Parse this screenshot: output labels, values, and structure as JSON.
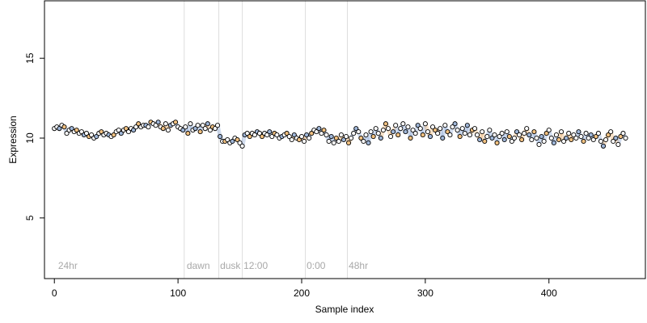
{
  "chart_data": {
    "type": "scatter",
    "xlabel": "Sample index",
    "ylabel": "Expression",
    "xlim": [
      -8,
      478
    ],
    "ylim": [
      1.2,
      18.6
    ],
    "x_ticks": [
      0,
      100,
      200,
      300,
      400
    ],
    "y_ticks": [
      5,
      10,
      15
    ],
    "x_tick_labels": [
      "0",
      "100",
      "200",
      "300",
      "400"
    ],
    "y_tick_labels": [
      "5",
      "10",
      "15"
    ],
    "vertical_lines": [
      105,
      133,
      152,
      203,
      237
    ],
    "annotations": [
      {
        "text": "24hr",
        "x": 3
      },
      {
        "text": "dawn",
        "x": 107
      },
      {
        "text": "dusk",
        "x": 134
      },
      {
        "text": "12:00",
        "x": 153
      },
      {
        "text": "0:00",
        "x": 204
      },
      {
        "text": "48hr",
        "x": 238
      }
    ],
    "annotation_y": 2.0,
    "colors": {
      "point_outline": "#000000",
      "fill_blue": "#9fb6d8",
      "fill_orange": "#f0c080",
      "fill_white": "#ffffff",
      "shade_blue": "#7f9fd0",
      "shade_orange": "#e8a860",
      "vline": "#dddddd",
      "annot": "#a8a8a8"
    },
    "points": [
      [
        0,
        10.6
      ],
      [
        2,
        10.7
      ],
      [
        4,
        10.6
      ],
      [
        6,
        10.8
      ],
      [
        8,
        10.7
      ],
      [
        10,
        10.3
      ],
      [
        12,
        10.5
      ],
      [
        14,
        10.6
      ],
      [
        16,
        10.4
      ],
      [
        18,
        10.5
      ],
      [
        20,
        10.3
      ],
      [
        22,
        10.4
      ],
      [
        24,
        10.2
      ],
      [
        26,
        10.3
      ],
      [
        28,
        10.1
      ],
      [
        30,
        10.2
      ],
      [
        32,
        10.0
      ],
      [
        34,
        10.1
      ],
      [
        36,
        10.3
      ],
      [
        38,
        10.4
      ],
      [
        40,
        10.2
      ],
      [
        42,
        10.3
      ],
      [
        44,
        10.2
      ],
      [
        46,
        10.1
      ],
      [
        48,
        10.2
      ],
      [
        50,
        10.4
      ],
      [
        52,
        10.5
      ],
      [
        54,
        10.3
      ],
      [
        56,
        10.5
      ],
      [
        58,
        10.6
      ],
      [
        60,
        10.4
      ],
      [
        62,
        10.6
      ],
      [
        64,
        10.5
      ],
      [
        66,
        10.7
      ],
      [
        68,
        10.9
      ],
      [
        70,
        10.7
      ],
      [
        72,
        10.8
      ],
      [
        74,
        10.8
      ],
      [
        76,
        10.7
      ],
      [
        78,
        11.0
      ],
      [
        80,
        10.9
      ],
      [
        82,
        10.8
      ],
      [
        84,
        11.0
      ],
      [
        86,
        10.7
      ],
      [
        88,
        10.6
      ],
      [
        90,
        10.9
      ],
      [
        92,
        10.5
      ],
      [
        94,
        10.8
      ],
      [
        96,
        10.9
      ],
      [
        98,
        11.0
      ],
      [
        100,
        10.7
      ],
      [
        102,
        10.6
      ],
      [
        104,
        10.5
      ],
      [
        106,
        10.7
      ],
      [
        108,
        10.3
      ],
      [
        110,
        10.9
      ],
      [
        112,
        10.5
      ],
      [
        114,
        10.6
      ],
      [
        116,
        10.8
      ],
      [
        118,
        10.4
      ],
      [
        120,
        10.8
      ],
      [
        122,
        10.6
      ],
      [
        124,
        10.9
      ],
      [
        126,
        10.5
      ],
      [
        128,
        10.7
      ],
      [
        130,
        10.6
      ],
      [
        132,
        10.8
      ],
      [
        134,
        10.1
      ],
      [
        136,
        9.8
      ],
      [
        138,
        9.8
      ],
      [
        140,
        9.9
      ],
      [
        142,
        9.7
      ],
      [
        144,
        9.8
      ],
      [
        146,
        10.0
      ],
      [
        148,
        9.9
      ],
      [
        150,
        9.7
      ],
      [
        152,
        9.5
      ],
      [
        154,
        10.2
      ],
      [
        156,
        10.3
      ],
      [
        158,
        10.1
      ],
      [
        160,
        10.3
      ],
      [
        162,
        10.2
      ],
      [
        164,
        10.4
      ],
      [
        166,
        10.3
      ],
      [
        168,
        10.1
      ],
      [
        170,
        10.3
      ],
      [
        172,
        10.2
      ],
      [
        174,
        10.4
      ],
      [
        176,
        10.1
      ],
      [
        178,
        10.3
      ],
      [
        180,
        10.2
      ],
      [
        182,
        10.0
      ],
      [
        184,
        10.1
      ],
      [
        186,
        10.2
      ],
      [
        188,
        10.3
      ],
      [
        190,
        10.1
      ],
      [
        192,
        9.9
      ],
      [
        194,
        10.2
      ],
      [
        196,
        10.0
      ],
      [
        198,
        9.9
      ],
      [
        200,
        10.1
      ],
      [
        202,
        9.8
      ],
      [
        204,
        10.2
      ],
      [
        206,
        10.0
      ],
      [
        208,
        10.3
      ],
      [
        210,
        10.5
      ],
      [
        212,
        10.4
      ],
      [
        214,
        10.6
      ],
      [
        216,
        10.3
      ],
      [
        218,
        10.5
      ],
      [
        220,
        10.2
      ],
      [
        222,
        9.8
      ],
      [
        224,
        10.1
      ],
      [
        226,
        9.7
      ],
      [
        228,
        10.0
      ],
      [
        230,
        9.8
      ],
      [
        232,
        10.2
      ],
      [
        234,
        9.9
      ],
      [
        236,
        10.1
      ],
      [
        238,
        9.7
      ],
      [
        240,
        10.0
      ],
      [
        242,
        10.3
      ],
      [
        244,
        10.6
      ],
      [
        246,
        10.4
      ],
      [
        248,
        10.0
      ],
      [
        250,
        9.8
      ],
      [
        252,
        10.2
      ],
      [
        254,
        9.7
      ],
      [
        256,
        10.4
      ],
      [
        258,
        10.1
      ],
      [
        260,
        10.6
      ],
      [
        262,
        10.3
      ],
      [
        264,
        10.0
      ],
      [
        266,
        10.5
      ],
      [
        268,
        10.9
      ],
      [
        270,
        10.6
      ],
      [
        272,
        10.1
      ],
      [
        274,
        10.4
      ],
      [
        276,
        10.8
      ],
      [
        278,
        10.2
      ],
      [
        280,
        10.6
      ],
      [
        282,
        10.9
      ],
      [
        284,
        10.4
      ],
      [
        286,
        10.7
      ],
      [
        288,
        10.0
      ],
      [
        290,
        10.5
      ],
      [
        292,
        10.3
      ],
      [
        294,
        10.8
      ],
      [
        296,
        10.6
      ],
      [
        298,
        10.2
      ],
      [
        300,
        10.9
      ],
      [
        302,
        10.4
      ],
      [
        304,
        10.1
      ],
      [
        306,
        10.7
      ],
      [
        308,
        10.5
      ],
      [
        310,
        10.3
      ],
      [
        312,
        10.6
      ],
      [
        314,
        10.0
      ],
      [
        316,
        10.8
      ],
      [
        318,
        10.4
      ],
      [
        320,
        10.2
      ],
      [
        322,
        10.7
      ],
      [
        324,
        10.9
      ],
      [
        326,
        10.5
      ],
      [
        328,
        10.1
      ],
      [
        330,
        10.6
      ],
      [
        332,
        10.3
      ],
      [
        334,
        10.8
      ],
      [
        336,
        10.2
      ],
      [
        338,
        10.5
      ],
      [
        340,
        10.6
      ],
      [
        342,
        10.2
      ],
      [
        344,
        9.9
      ],
      [
        346,
        10.4
      ],
      [
        348,
        9.8
      ],
      [
        350,
        10.1
      ],
      [
        352,
        10.5
      ],
      [
        354,
        10.0
      ],
      [
        356,
        10.2
      ],
      [
        358,
        9.7
      ],
      [
        360,
        10.1
      ],
      [
        362,
        10.3
      ],
      [
        364,
        9.9
      ],
      [
        366,
        10.4
      ],
      [
        368,
        10.1
      ],
      [
        370,
        9.8
      ],
      [
        372,
        10.0
      ],
      [
        374,
        10.4
      ],
      [
        376,
        10.2
      ],
      [
        378,
        9.9
      ],
      [
        380,
        10.3
      ],
      [
        382,
        10.6
      ],
      [
        384,
        10.2
      ],
      [
        386,
        9.9
      ],
      [
        388,
        10.4
      ],
      [
        390,
        10.0
      ],
      [
        392,
        9.6
      ],
      [
        394,
        10.1
      ],
      [
        396,
        9.8
      ],
      [
        398,
        10.3
      ],
      [
        400,
        10.5
      ],
      [
        402,
        10.0
      ],
      [
        404,
        9.7
      ],
      [
        406,
        10.2
      ],
      [
        408,
        9.9
      ],
      [
        410,
        10.4
      ],
      [
        412,
        9.8
      ],
      [
        414,
        10.0
      ],
      [
        416,
        10.3
      ],
      [
        418,
        9.9
      ],
      [
        420,
        10.2
      ],
      [
        422,
        10.0
      ],
      [
        424,
        10.4
      ],
      [
        426,
        10.1
      ],
      [
        428,
        9.8
      ],
      [
        430,
        10.3
      ],
      [
        432,
        10.0
      ],
      [
        434,
        10.2
      ],
      [
        436,
        9.9
      ],
      [
        438,
        10.1
      ],
      [
        440,
        10.3
      ],
      [
        442,
        9.8
      ],
      [
        444,
        9.5
      ],
      [
        446,
        9.9
      ],
      [
        448,
        10.2
      ],
      [
        450,
        10.4
      ],
      [
        452,
        9.8
      ],
      [
        454,
        10.0
      ],
      [
        456,
        9.6
      ],
      [
        458,
        10.1
      ],
      [
        460,
        10.3
      ],
      [
        462,
        10.0
      ]
    ]
  }
}
